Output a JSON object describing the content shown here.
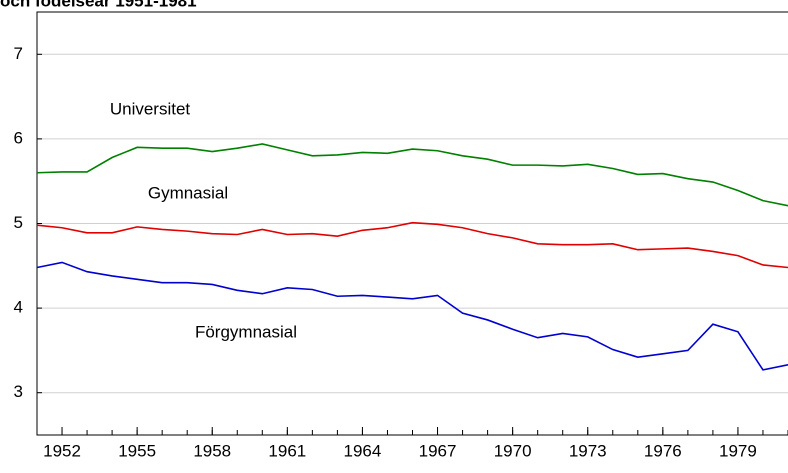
{
  "chart_data": {
    "type": "line",
    "title": "och födelseår 1951-1981",
    "x": [
      1951,
      1952,
      1953,
      1954,
      1955,
      1956,
      1957,
      1958,
      1959,
      1960,
      1961,
      1962,
      1963,
      1964,
      1965,
      1966,
      1967,
      1968,
      1969,
      1970,
      1971,
      1972,
      1973,
      1974,
      1975,
      1976,
      1977,
      1978,
      1979,
      1980,
      1981
    ],
    "series": [
      {
        "name": "Universitet",
        "color": "#008000",
        "values": [
          5.6,
          5.61,
          5.61,
          5.78,
          5.9,
          5.89,
          5.89,
          5.85,
          5.89,
          5.94,
          5.87,
          5.8,
          5.81,
          5.84,
          5.83,
          5.88,
          5.86,
          5.8,
          5.76,
          5.69,
          5.69,
          5.68,
          5.7,
          5.65,
          5.58,
          5.59,
          5.53,
          5.49,
          5.39,
          5.27,
          5.21
        ]
      },
      {
        "name": "Gymnasial",
        "color": "#e00000",
        "values": [
          4.98,
          4.95,
          4.89,
          4.89,
          4.96,
          4.93,
          4.91,
          4.88,
          4.87,
          4.93,
          4.87,
          4.88,
          4.85,
          4.92,
          4.95,
          5.01,
          4.99,
          4.95,
          4.88,
          4.83,
          4.76,
          4.75,
          4.75,
          4.76,
          4.69,
          4.7,
          4.71,
          4.67,
          4.62,
          4.51,
          4.48
        ]
      },
      {
        "name": "Förgymnasial",
        "color": "#0000d0",
        "values": [
          4.48,
          4.54,
          4.43,
          4.38,
          4.34,
          4.3,
          4.3,
          4.28,
          4.21,
          4.17,
          4.24,
          4.22,
          4.14,
          4.15,
          4.13,
          4.11,
          4.15,
          3.94,
          3.86,
          3.75,
          3.65,
          3.7,
          3.66,
          3.51,
          3.42,
          3.46,
          3.5,
          3.81,
          3.72,
          3.27,
          3.33
        ]
      }
    ],
    "xlim": [
      1951,
      1981
    ],
    "xticks": [
      1952,
      1955,
      1958,
      1961,
      1964,
      1967,
      1970,
      1973,
      1976,
      1979
    ],
    "ylim": [
      2.5,
      7.5
    ],
    "yticks": [
      3,
      4,
      5,
      6,
      7
    ],
    "grid": true
  }
}
